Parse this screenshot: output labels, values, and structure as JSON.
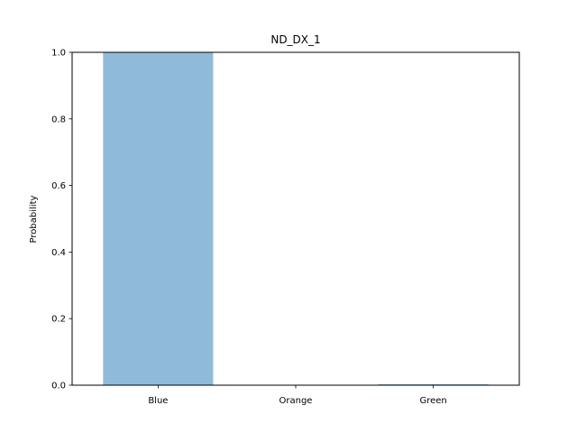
{
  "chart_data": {
    "type": "bar",
    "title": "ND_DX_1",
    "xlabel": "",
    "ylabel": "Probability",
    "categories": [
      "Blue",
      "Orange",
      "Green"
    ],
    "values": [
      1.0,
      0.0,
      0.003
    ],
    "ylim": [
      0,
      1
    ],
    "yticks": [
      "0.0",
      "0.2",
      "0.4",
      "0.6",
      "0.8",
      "1.0"
    ],
    "grid": false,
    "bar_color": "#1f77b4",
    "bar_opacity": 0.5
  }
}
